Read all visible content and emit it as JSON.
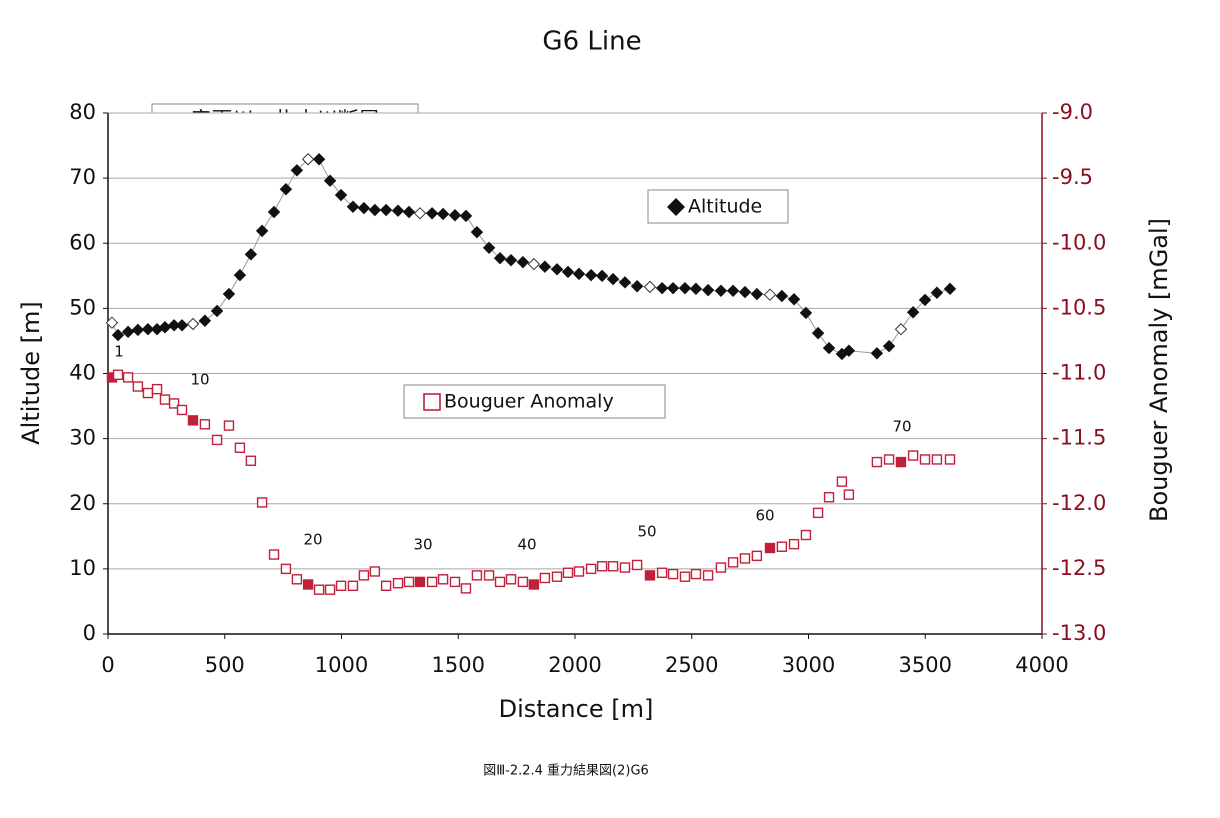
{
  "chart_data": {
    "type": "scatter",
    "title": "G6 Line",
    "xlabel": "Distance [m]",
    "ylabel": "Altitude [m]",
    "y2label": "Bouguer Anomaly [mGal]",
    "annotation": "音更川ー札内川断層",
    "caption": "図Ⅲ-2.2.4 重力結果図(2)G6",
    "point_labels": [
      "1",
      "10",
      "20",
      "30",
      "40",
      "50",
      "60",
      "70"
    ],
    "emphasized_points": [
      0,
      9,
      19,
      29,
      39,
      49,
      59,
      69
    ],
    "xlim": [
      0,
      4000
    ],
    "xticks": [
      0,
      500,
      1000,
      1500,
      2000,
      2500,
      3000,
      3500,
      4000
    ],
    "ylim": [
      0,
      80
    ],
    "yticks": [
      0,
      10,
      20,
      30,
      40,
      50,
      60,
      70,
      80
    ],
    "y2lim": [
      -13,
      -9
    ],
    "y2ticks": [
      {
        "value": -13,
        "label": "-13.0"
      },
      -12.5,
      {
        "value": -12,
        "label": "-12.0"
      },
      -11.5,
      {
        "value": -11,
        "label": "-11.0"
      },
      -10.5,
      {
        "value": -10,
        "label": "-10.0"
      },
      -9.5,
      {
        "value": -9,
        "label": "-9.0"
      }
    ],
    "grid": true,
    "x": [
      17,
      43,
      86,
      128,
      171,
      210,
      244,
      283,
      317,
      364,
      415,
      467,
      518,
      565,
      612,
      660,
      711,
      762,
      809,
      857,
      904,
      951,
      998,
      1049,
      1096,
      1143,
      1191,
      1242,
      1289,
      1336,
      1388,
      1435,
      1486,
      1533,
      1580,
      1632,
      1679,
      1726,
      1777,
      1824,
      1871,
      1923,
      1970,
      2017,
      2069,
      2116,
      2163,
      2214,
      2266,
      2321,
      2373,
      2420,
      2471,
      2518,
      2570,
      2625,
      2677,
      2728,
      2779,
      2835,
      2886,
      2938,
      2989,
      3041,
      3088,
      3143,
      3173,
      3293,
      3345,
      3396,
      3448,
      3499,
      3550,
      3606
    ],
    "series": [
      {
        "name": "Altitude",
        "color": "#111111",
        "marker": "diamond",
        "values": [
          47.8,
          45.9,
          46.4,
          46.7,
          46.8,
          46.8,
          47.1,
          47.4,
          47.4,
          47.6,
          48.1,
          49.6,
          52.2,
          55.1,
          58.3,
          61.9,
          64.8,
          68.3,
          71.2,
          72.9,
          72.9,
          69.6,
          67.4,
          65.6,
          65.4,
          65.1,
          65.1,
          65.0,
          64.8,
          64.6,
          64.6,
          64.5,
          64.3,
          64.2,
          61.7,
          59.3,
          57.7,
          57.4,
          57.1,
          56.8,
          56.4,
          56.0,
          55.6,
          55.3,
          55.1,
          55.0,
          54.5,
          54.0,
          53.4,
          53.3,
          53.1,
          53.1,
          53.1,
          53.0,
          52.8,
          52.7,
          52.7,
          52.5,
          52.2,
          52.1,
          51.9,
          51.4,
          49.3,
          46.2,
          43.9,
          43.0,
          43.5,
          43.1,
          44.2,
          46.8,
          49.4,
          51.3,
          52.4,
          53.0
        ]
      },
      {
        "name": "Bouguer Anomaly",
        "color": "#c0203a",
        "marker": "square",
        "axis": "y2",
        "values": [
          -11.03,
          -11.01,
          -11.03,
          -11.1,
          -11.15,
          -11.12,
          -11.2,
          -11.23,
          -11.28,
          -11.36,
          -11.39,
          -11.51,
          -11.4,
          -11.57,
          -11.67,
          -11.99,
          -12.39,
          -12.5,
          -12.58,
          -12.62,
          -12.66,
          -12.66,
          -12.63,
          -12.63,
          -12.55,
          -12.52,
          -12.63,
          -12.61,
          -12.6,
          -12.6,
          -12.6,
          -12.58,
          -12.6,
          -12.65,
          -12.55,
          -12.55,
          -12.6,
          -12.58,
          -12.6,
          -12.62,
          -12.57,
          -12.56,
          -12.53,
          -12.52,
          -12.5,
          -12.48,
          -12.48,
          -12.49,
          -12.47,
          -12.55,
          -12.53,
          -12.54,
          -12.56,
          -12.54,
          -12.55,
          -12.49,
          -12.45,
          -12.42,
          -12.4,
          -12.34,
          -12.33,
          -12.31,
          -12.24,
          -12.07,
          -11.95,
          -11.83,
          -11.93,
          -11.68,
          -11.66,
          -11.68,
          -11.63,
          -11.66,
          -11.66,
          -11.66
        ]
      }
    ]
  }
}
